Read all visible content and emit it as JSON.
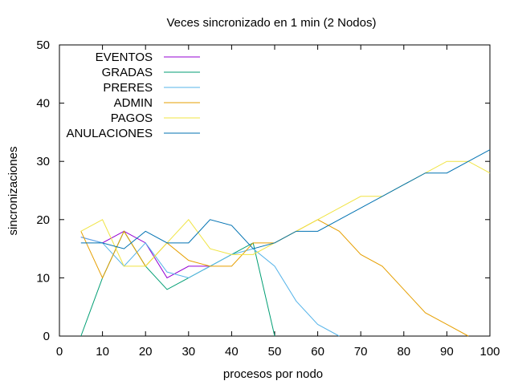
{
  "chart_data": {
    "type": "line",
    "title": "Veces sincronizado en 1 min (2 Nodos)",
    "xlabel": "procesos por nodo",
    "ylabel": "sincronizaciones",
    "xlim": [
      0,
      100
    ],
    "ylim": [
      0,
      50
    ],
    "xticks": [
      0,
      10,
      20,
      30,
      40,
      50,
      60,
      70,
      80,
      90,
      100
    ],
    "yticks": [
      0,
      10,
      20,
      30,
      40,
      50
    ],
    "grid": false,
    "legend_position": "top-left",
    "series": [
      {
        "name": "EVENTOS",
        "color": "#9400d3",
        "x": [
          5,
          10,
          15,
          20,
          25,
          30,
          35
        ],
        "y": [
          17,
          16,
          18,
          16,
          10,
          12,
          12
        ]
      },
      {
        "name": "GRADAS",
        "color": "#009e73",
        "x": [
          5,
          10,
          15,
          20,
          25,
          30,
          35,
          40,
          45,
          50
        ],
        "y": [
          0,
          10,
          18,
          12,
          8,
          10,
          12,
          14,
          16,
          0
        ]
      },
      {
        "name": "PRERES",
        "color": "#56b4e9",
        "x": [
          5,
          10,
          15,
          20,
          25,
          30,
          35,
          40,
          45,
          50,
          55,
          60,
          65
        ],
        "y": [
          17,
          16,
          12,
          16,
          11,
          10,
          12,
          14,
          15,
          12,
          6,
          2,
          0
        ]
      },
      {
        "name": "ADMIN",
        "color": "#e69f00",
        "x": [
          5,
          10,
          15,
          20,
          25,
          30,
          35,
          40,
          45,
          50,
          55,
          60,
          65,
          70,
          75,
          80,
          85,
          90,
          95
        ],
        "y": [
          18,
          10,
          18,
          12,
          16,
          13,
          12,
          12,
          16,
          16,
          18,
          20,
          18,
          14,
          12,
          8,
          4,
          2,
          0
        ]
      },
      {
        "name": "PAGOS",
        "color": "#f0e442",
        "x": [
          5,
          10,
          15,
          20,
          25,
          30,
          35,
          40,
          45,
          50,
          55,
          60,
          65,
          70,
          75,
          80,
          85,
          90,
          95,
          100
        ],
        "y": [
          18,
          20,
          12,
          12,
          16,
          20,
          15,
          14,
          14,
          16,
          18,
          20,
          22,
          24,
          24,
          26,
          28,
          30,
          30,
          28
        ]
      },
      {
        "name": "ANULACIONES",
        "color": "#0072b2",
        "x": [
          5,
          10,
          15,
          20,
          25,
          30,
          35,
          40,
          45,
          50,
          55,
          60,
          65,
          70,
          75,
          80,
          85,
          90,
          95,
          100
        ],
        "y": [
          16,
          16,
          15,
          18,
          16,
          16,
          20,
          19,
          15,
          16,
          18,
          18,
          20,
          22,
          24,
          26,
          28,
          28,
          30,
          32
        ]
      }
    ]
  }
}
